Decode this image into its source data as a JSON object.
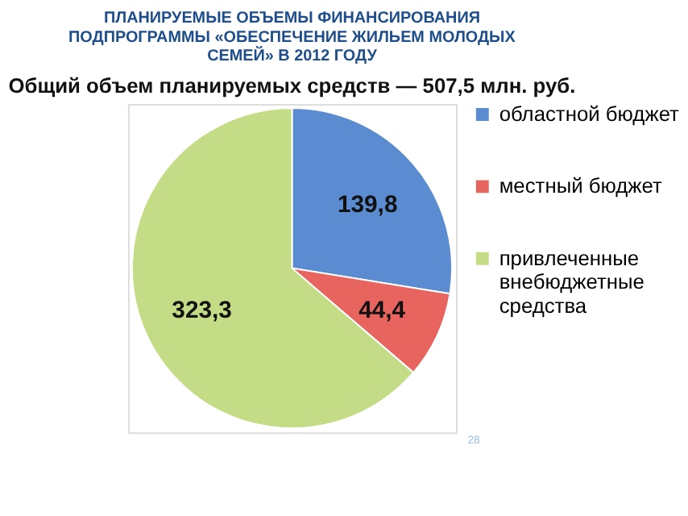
{
  "chart_data": {
    "type": "pie",
    "title": [
      "ПЛАНИРУЕМЫЕ ОБЪЕМЫ ФИНАНСИРОВАНИЯ",
      "ПОДПРОГРАММЫ «ОБЕСПЕЧЕНИЕ ЖИЛЬЕМ МОЛОДЫХ",
      "СЕМЕЙ» В 2012 ГОДУ"
    ],
    "subtitle": "Общий объем планируемых средств — 507,5 млн. руб.",
    "categories": [
      "областной бюджет",
      "местный бюджет",
      "привлеченные внебюджетные средства"
    ],
    "values": [
      139.8,
      44.4,
      323.3
    ],
    "value_labels": [
      "139,8",
      "44,4",
      "323,3"
    ],
    "colors": [
      "#5b8bd0",
      "#e8645f",
      "#c5dc86"
    ],
    "legend": "right",
    "annotations": [
      "28"
    ]
  }
}
